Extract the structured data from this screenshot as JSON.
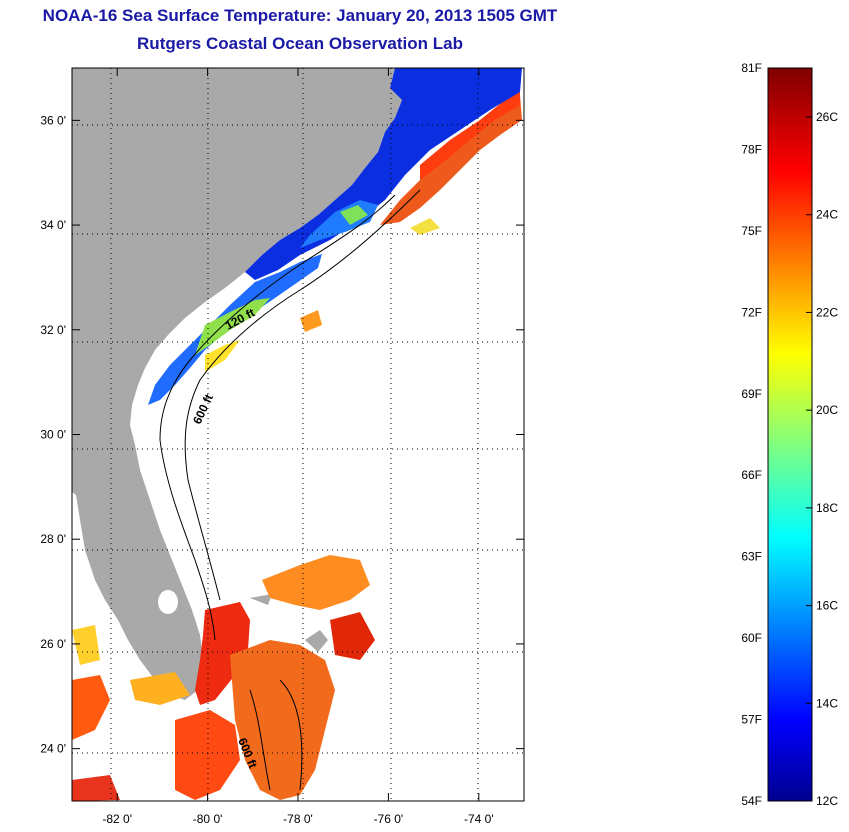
{
  "header": {
    "title": "NOAA-16 Sea Surface Temperature:  January 20, 2013 1505 GMT",
    "subtitle": "Rutgers Coastal Ocean Observation Lab"
  },
  "map": {
    "lat_ticks": [
      {
        "value": 36,
        "label": "36 0'"
      },
      {
        "value": 34,
        "label": "34 0'"
      },
      {
        "value": 32,
        "label": "32 0'"
      },
      {
        "value": 30,
        "label": "30 0'"
      },
      {
        "value": 28,
        "label": "28 0'"
      },
      {
        "value": 26,
        "label": "26 0'"
      },
      {
        "value": 24,
        "label": "24 0'"
      }
    ],
    "lon_ticks": [
      {
        "value": -82,
        "label": "-82 0'"
      },
      {
        "value": -80,
        "label": "-80 0'"
      },
      {
        "value": -78,
        "label": "-78 0'"
      },
      {
        "value": -76,
        "label": "-76 0'"
      },
      {
        "value": -74,
        "label": "-74 0'"
      }
    ],
    "lat_range": [
      23,
      37
    ],
    "lon_range": [
      -83,
      -73
    ],
    "contour_labels": [
      "120 ft",
      "600 ft",
      "600 ft"
    ],
    "land_color": "#a9a9a9",
    "grid": true
  },
  "colorbar": {
    "fahrenheit": [
      "81F",
      "78F",
      "75F",
      "72F",
      "69F",
      "66F",
      "63F",
      "60F",
      "57F",
      "54F"
    ],
    "celsius": [
      "26C",
      "24C",
      "22C",
      "20C",
      "18C",
      "16C",
      "14C",
      "12C"
    ]
  }
}
